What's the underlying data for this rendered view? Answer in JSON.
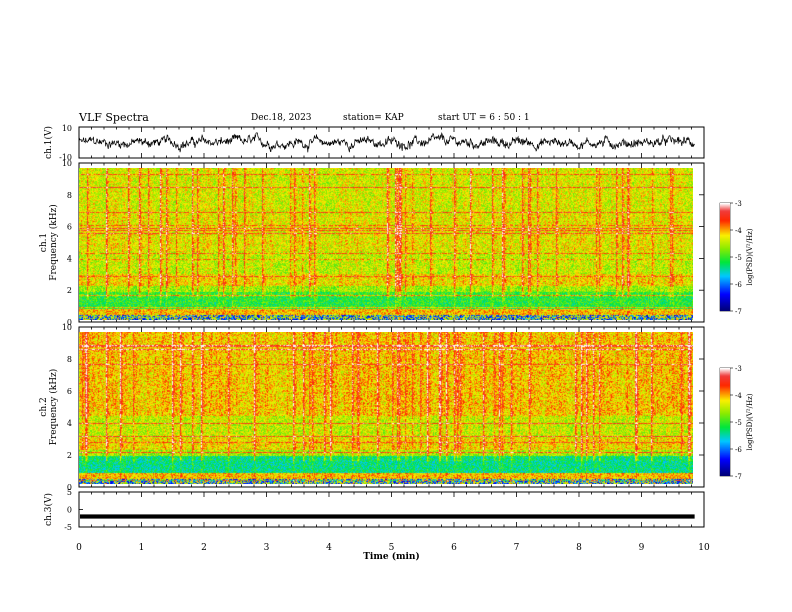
{
  "header": {
    "title": "VLF Spectra",
    "date": "Dec.18, 2023",
    "station": "station= KAP",
    "start": "start  UT  =   6  : 50 : 1"
  },
  "chart_data": [
    {
      "type": "line",
      "panel": "ch1-waveform",
      "ylabel": "ch.1(V)",
      "ylim": [
        -10,
        10
      ],
      "y_ticks": [
        "10",
        "-10"
      ],
      "x_range_min": [
        0,
        9.85
      ]
    },
    {
      "type": "heatmap",
      "panel": "ch1-spectrogram",
      "ylabel_line1": "ch.1",
      "ylabel_line2": "Frequency  (kHz)",
      "ylim": [
        0,
        10
      ],
      "y_ticks": [
        "0",
        "2",
        "4",
        "6",
        "8",
        "10"
      ],
      "colorbar": {
        "label": "log(PSD)(V²/Hz)",
        "range": [
          -7,
          -3
        ],
        "ticks": [
          "-3",
          "-4",
          "-5",
          "-6",
          "-7"
        ]
      }
    },
    {
      "type": "heatmap",
      "panel": "ch2-spectrogram",
      "ylabel_line1": "ch.2",
      "ylabel_line2": "Frequency  (kHz)",
      "ylim": [
        0,
        10
      ],
      "y_ticks": [
        "0",
        "2",
        "4",
        "6",
        "8",
        "10"
      ],
      "colorbar": {
        "label": "log(PSD)(V²/Hz)",
        "range": [
          -7,
          -3
        ],
        "ticks": [
          "-3",
          "-4",
          "-5",
          "-6",
          "-7"
        ]
      }
    },
    {
      "type": "line",
      "panel": "ch3-waveform",
      "ylabel": "ch.3(V)",
      "ylim": [
        -5,
        5
      ],
      "y_ticks": [
        "5",
        "0",
        "-5"
      ],
      "xlabel": "Time  (min)",
      "xlim": [
        0,
        10
      ],
      "x_ticks": [
        "0",
        "1",
        "2",
        "3",
        "4",
        "5",
        "6",
        "7",
        "8",
        "9",
        "10"
      ]
    }
  ]
}
